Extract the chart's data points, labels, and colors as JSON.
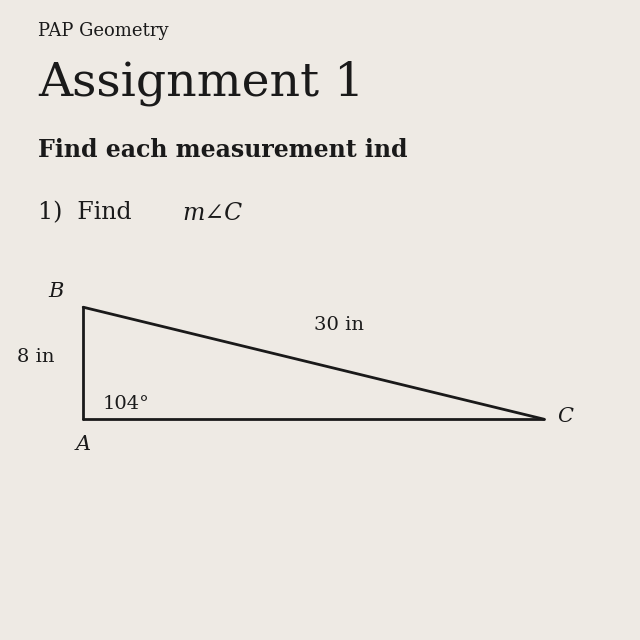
{
  "background_color": "#eeeae4",
  "title_small": "PAP Geometry",
  "title_large": "Assignment 1",
  "subtitle": "Find each measurement ind",
  "problem_label": "1)  Find ",
  "problem_math": "m∠C",
  "vertex_A": [
    0.13,
    0.345
  ],
  "vertex_B": [
    0.13,
    0.52
  ],
  "vertex_C": [
    0.85,
    0.345
  ],
  "label_A": "A",
  "label_B": "B",
  "label_C": "C",
  "side_AB_label": "8 in",
  "side_BC_label": "30 in",
  "angle_A_label": "104°",
  "line_color": "#1a1a1a",
  "text_color": "#1a1a1a",
  "title_small_fontsize": 13,
  "title_large_fontsize": 34,
  "subtitle_fontsize": 17,
  "problem_fontsize": 17,
  "triangle_label_fontsize": 15,
  "triangle_side_fontsize": 14,
  "lw": 2.0
}
